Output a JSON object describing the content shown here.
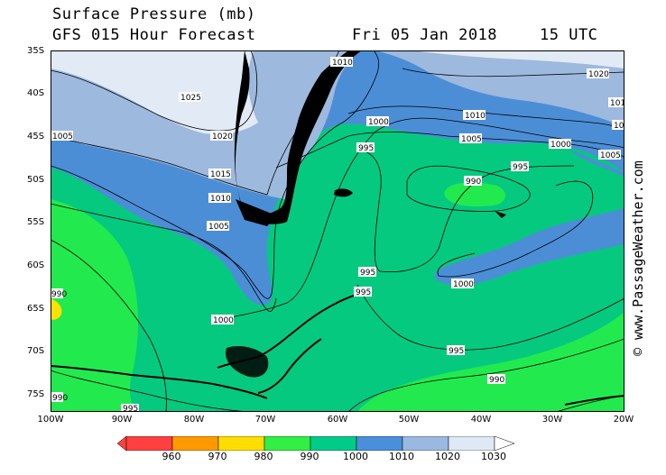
{
  "header": {
    "title": "Surface Pressure (mb)",
    "model": "GFS 015 Hour Forecast",
    "date": "Fri 05 Jan 2018",
    "time": "15 UTC"
  },
  "credit": "© www.PassageWeather.com",
  "lat_labels": [
    "35S",
    "40S",
    "45S",
    "50S",
    "55S",
    "60S",
    "65S",
    "70S",
    "75S"
  ],
  "lon_labels": [
    "100W",
    "90W",
    "80W",
    "70W",
    "60W",
    "50W",
    "40W",
    "30W",
    "20W"
  ],
  "contour_labels": [
    "1010",
    "1025",
    "1020",
    "1020",
    "1015",
    "1010",
    "1005",
    "1005",
    "1000",
    "1010",
    "1005",
    "1000",
    "995",
    "995",
    "990",
    "995",
    "1000",
    "995",
    "1000",
    "995",
    "990",
    "990",
    "1005",
    "101",
    "10",
    "995",
    "990"
  ],
  "color_scale": {
    "labels": [
      "960",
      "970",
      "980",
      "990",
      "1000",
      "1010",
      "1020",
      "1030"
    ],
    "colors": [
      "#ff4040",
      "#ff9900",
      "#ffdd00",
      "#33ee44",
      "#00cc88",
      "#4a8fd9",
      "#9ab8e0",
      "#dfe8f5"
    ]
  },
  "colors": {
    "band_1030": "#e2eaf5",
    "band_1020": "#9db9de",
    "band_1010": "#4c8ed6",
    "band_1000": "#05c97f",
    "band_990": "#22ea4e",
    "band_980": "#ffe000",
    "land": "#000000"
  }
}
